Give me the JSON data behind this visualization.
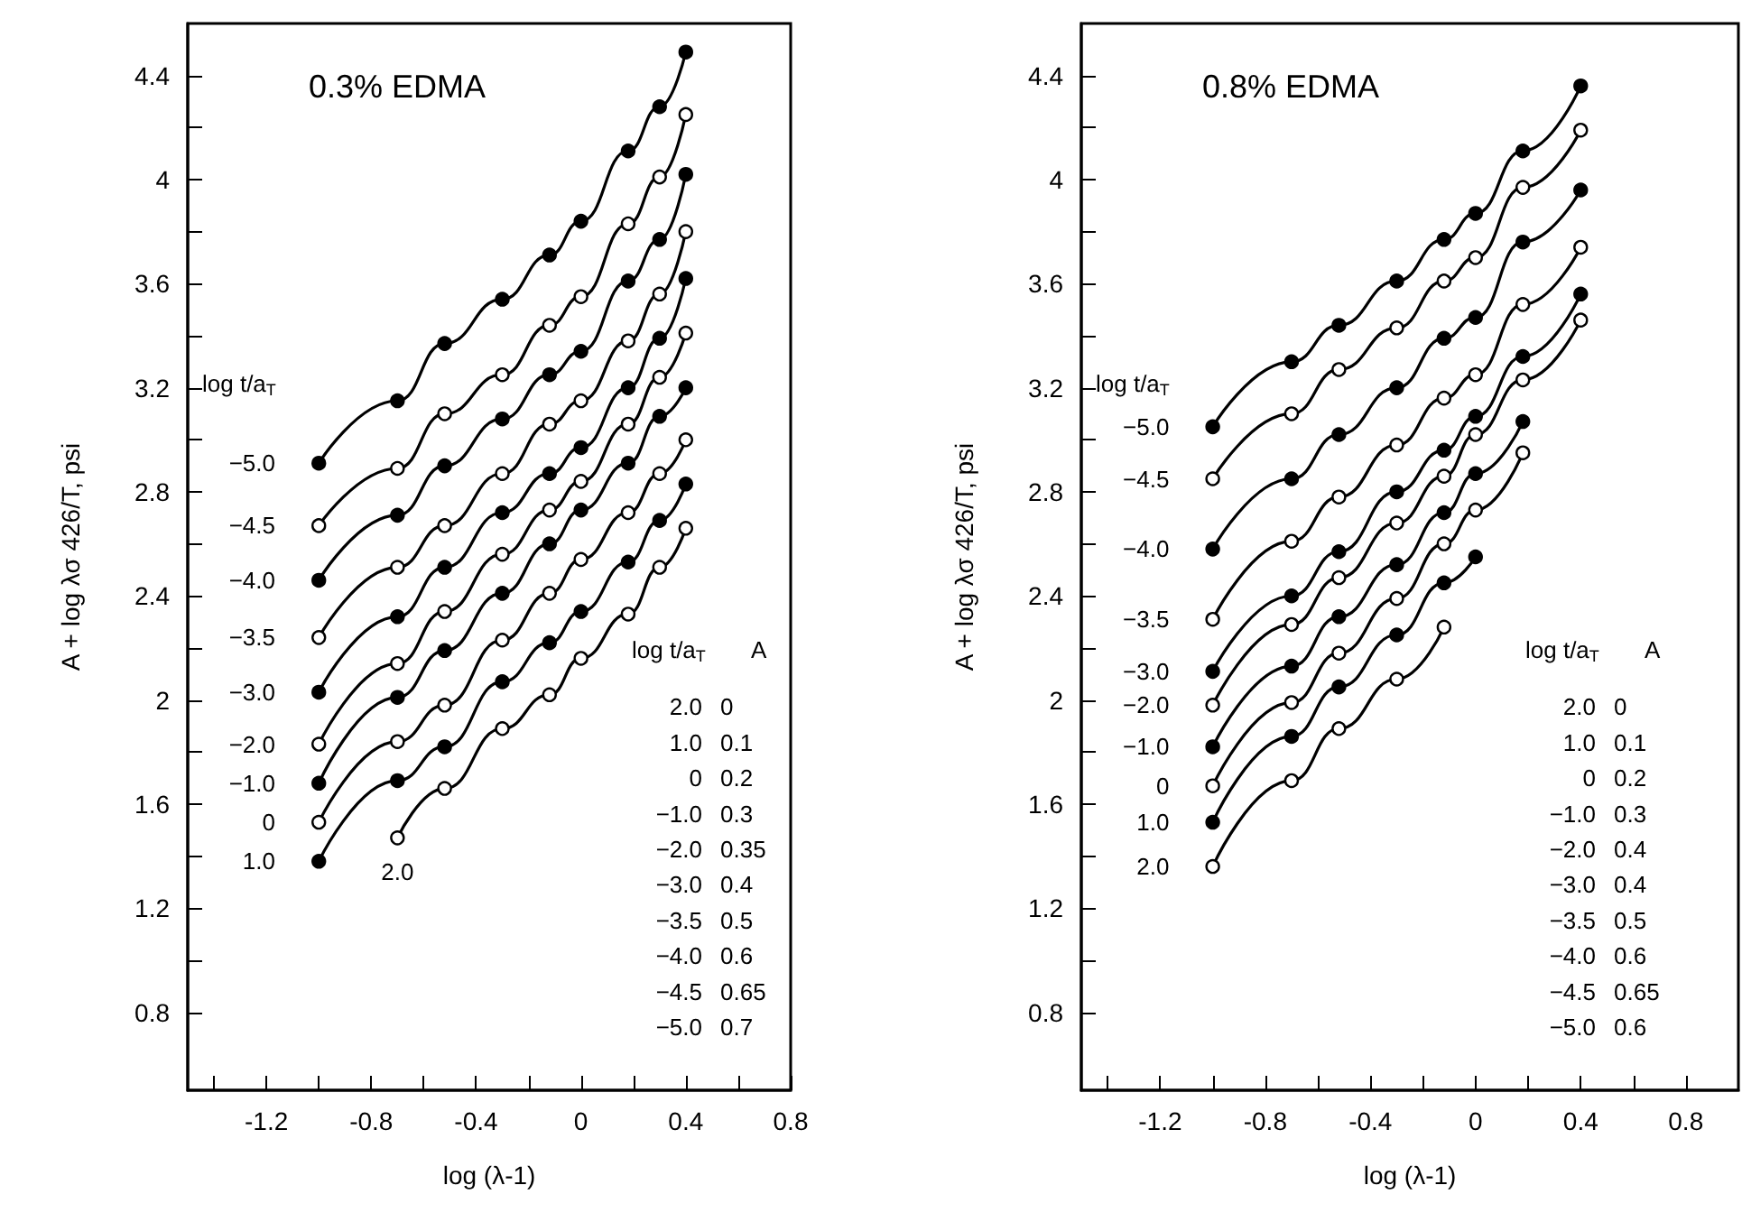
{
  "chart_data": [
    {
      "type": "line",
      "title": "0.3% EDMA",
      "xlabel": "log (λ-1)",
      "ylabel": "A + log λσ 426/T, psi",
      "legend_title": "log t/a$_{T}$",
      "marker": "circle",
      "line_style": "solid",
      "x": [
        -1.0,
        -0.7,
        -0.52,
        -0.3,
        -0.12,
        0,
        0.18,
        0.3,
        0.4
      ],
      "series": [
        {
          "name": "−5.0",
          "color": "#000000",
          "values": [
            2.91,
            3.15,
            3.37,
            3.54,
            3.71,
            3.84,
            4.11,
            4.28,
            4.49
          ]
        },
        {
          "name": "−4.5",
          "color": "#000000",
          "values": [
            2.67,
            2.89,
            3.1,
            3.25,
            3.44,
            3.55,
            3.83,
            4.01,
            4.25
          ]
        },
        {
          "name": "−4.0",
          "color": "#000000",
          "values": [
            2.46,
            2.71,
            2.9,
            3.08,
            3.25,
            3.34,
            3.61,
            3.77,
            4.02
          ]
        },
        {
          "name": "−3.5",
          "color": "#000000",
          "values": [
            2.24,
            2.51,
            2.67,
            2.87,
            3.06,
            3.15,
            3.38,
            3.56,
            3.8
          ]
        },
        {
          "name": "−3.0",
          "color": "#000000",
          "values": [
            2.03,
            2.32,
            2.51,
            2.72,
            2.87,
            2.97,
            3.2,
            3.39,
            3.62
          ]
        },
        {
          "name": "−2.0",
          "color": "#000000",
          "values": [
            1.83,
            2.14,
            2.34,
            2.56,
            2.73,
            2.84,
            3.06,
            3.24,
            3.41
          ]
        },
        {
          "name": "−1.0",
          "color": "#000000",
          "values": [
            1.68,
            2.01,
            2.19,
            2.41,
            2.6,
            2.73,
            2.91,
            3.09,
            3.2
          ]
        },
        {
          "name": "0",
          "color": "#000000",
          "values": [
            1.53,
            1.84,
            1.98,
            2.23,
            2.41,
            2.54,
            2.72,
            2.87,
            3.0
          ]
        },
        {
          "name": "1.0",
          "color": "#000000",
          "values": [
            1.38,
            1.69,
            1.82,
            2.07,
            2.22,
            2.34,
            2.53,
            2.69,
            2.83
          ]
        },
        {
          "name": "2.0",
          "color": "#000000",
          "values": [
            null,
            1.47,
            1.66,
            1.89,
            2.02,
            2.16,
            2.33,
            2.51,
            2.66
          ]
        }
      ],
      "xlim": [
        -1.5,
        0.8
      ],
      "ylim": [
        0.5,
        4.6
      ],
      "xticks": [
        {
          "value": -1.4,
          "label": null
        },
        -1.2,
        {
          "value": -1.0,
          "label": null
        },
        -0.8,
        {
          "value": -0.6,
          "label": null
        },
        -0.4,
        {
          "value": -0.2,
          "label": null
        },
        0,
        {
          "value": 0.2,
          "label": null
        },
        0.4,
        {
          "value": 0.6,
          "label": null
        },
        0.8
      ],
      "yticks": [
        0.8,
        {
          "value": 1.0,
          "label": null
        },
        1.2,
        {
          "value": 1.4,
          "label": null
        },
        1.6,
        {
          "value": 1.8,
          "label": null
        },
        2.0,
        {
          "value": 2.2,
          "label": null
        },
        2.4,
        {
          "value": 2.6,
          "label": null
        },
        2.8,
        {
          "value": 3.0,
          "label": null
        },
        3.2,
        {
          "value": 3.4,
          "label": null
        },
        3.6,
        {
          "value": 3.8,
          "label": null
        },
        4.0,
        {
          "value": 4.2,
          "label": null
        },
        4.4
      ],
      "annotations": [
        "log t/a$_{T}$",
        "A",
        "2.0",
        "0",
        "1.0",
        "0.1",
        "0",
        "0.2",
        "−1.0",
        "0.3",
        "−2.0",
        "0.35",
        "−3.0",
        "0.4",
        "−3.5",
        "0.5",
        "−4.0",
        "0.6",
        "−4.5",
        "0.65",
        "−5.0",
        "0.7"
      ]
    },
    {
      "type": "line",
      "title": "0.8% EDMA",
      "xlabel": "log (λ-1)",
      "ylabel": "A + log λσ 426/T, psi",
      "legend_title": "log t/a$_{T}$",
      "marker": "circle",
      "line_style": "solid",
      "x": [
        -1.0,
        -0.7,
        -0.52,
        -0.3,
        -0.12,
        0,
        0.18,
        0.4
      ],
      "series": [
        {
          "name": "−5.0",
          "color": "#000000",
          "values": [
            3.05,
            3.3,
            3.44,
            3.61,
            3.77,
            3.87,
            4.11,
            4.36
          ]
        },
        {
          "name": "−4.5",
          "color": "#000000",
          "values": [
            2.85,
            3.1,
            3.27,
            3.43,
            3.61,
            3.7,
            3.97,
            4.19
          ]
        },
        {
          "name": "−4.0",
          "color": "#000000",
          "values": [
            2.58,
            2.85,
            3.02,
            3.2,
            3.39,
            3.47,
            3.76,
            3.96
          ]
        },
        {
          "name": "−3.5",
          "color": "#000000",
          "values": [
            2.31,
            2.61,
            2.78,
            2.98,
            3.16,
            3.25,
            3.52,
            3.74
          ]
        },
        {
          "name": "−3.0",
          "color": "#000000",
          "values": [
            2.11,
            2.4,
            2.57,
            2.8,
            2.96,
            3.09,
            3.32,
            3.56
          ]
        },
        {
          "name": "−2.0",
          "color": "#000000",
          "values": [
            1.98,
            2.29,
            2.47,
            2.68,
            2.86,
            3.02,
            3.23,
            3.46
          ]
        },
        {
          "name": "−1.0",
          "color": "#000000",
          "values": [
            1.82,
            2.13,
            2.32,
            2.52,
            2.72,
            2.87,
            3.07,
            null
          ]
        },
        {
          "name": "0",
          "color": "#000000",
          "values": [
            1.67,
            1.99,
            2.18,
            2.39,
            2.6,
            2.73,
            2.95,
            null
          ]
        },
        {
          "name": "1.0",
          "color": "#000000",
          "values": [
            1.53,
            1.86,
            2.05,
            2.25,
            2.45,
            2.55,
            null,
            null
          ]
        },
        {
          "name": "2.0",
          "color": "#000000",
          "values": [
            1.36,
            1.69,
            1.89,
            2.08,
            2.28,
            null,
            null,
            null
          ]
        }
      ],
      "xlim": [
        -1.5,
        1.0
      ],
      "ylim": [
        0.5,
        4.6
      ],
      "xticks": [
        {
          "value": -1.4,
          "label": null
        },
        -1.2,
        {
          "value": -1.0,
          "label": null
        },
        -0.8,
        {
          "value": -0.6,
          "label": null
        },
        -0.4,
        {
          "value": -0.2,
          "label": null
        },
        0,
        {
          "value": 0.2,
          "label": null
        },
        0.4,
        {
          "value": 0.6,
          "label": null
        },
        0.8
      ],
      "yticks": [
        0.8,
        {
          "value": 1.0,
          "label": null
        },
        1.2,
        {
          "value": 1.4,
          "label": null
        },
        1.6,
        {
          "value": 1.8,
          "label": null
        },
        2.0,
        {
          "value": 2.2,
          "label": null
        },
        2.4,
        {
          "value": 2.6,
          "label": null
        },
        2.8,
        {
          "value": 3.0,
          "label": null
        },
        3.2,
        {
          "value": 3.4,
          "label": null
        },
        3.6,
        {
          "value": 3.8,
          "label": null
        },
        4.0,
        {
          "value": 4.2,
          "label": null
        },
        4.4
      ],
      "annotations": [
        "log t/a$_{T}$",
        "A",
        "2.0",
        "0",
        "1.0",
        "0.1",
        "0",
        "0.2",
        "−1.0",
        "0.3",
        "−2.0",
        "0.4",
        "−3.0",
        "0.4",
        "−3.5",
        "0.5",
        "−4.0",
        "0.6",
        "−4.5",
        "0.65",
        "−5.0",
        "0.6"
      ]
    }
  ]
}
